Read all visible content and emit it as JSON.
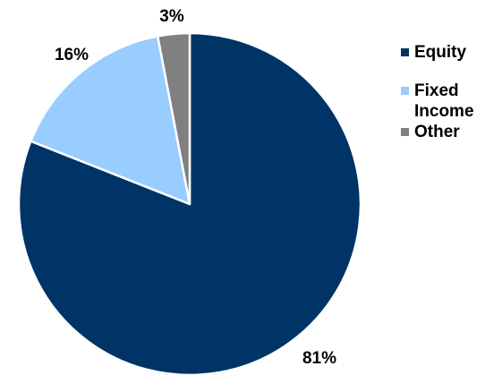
{
  "chart_data": {
    "type": "pie",
    "title": "",
    "slices": [
      {
        "label": "Equity",
        "value": 81,
        "display": "81%",
        "color": "#003366"
      },
      {
        "label": "Fixed Income",
        "value": 16,
        "display": "16%",
        "color": "#99CCFF"
      },
      {
        "label": "Other",
        "value": 3,
        "display": "3%",
        "color": "#808080"
      }
    ],
    "legend_position": "right",
    "start_angle": "top",
    "direction": "clockwise"
  },
  "legend": {
    "items": [
      {
        "label": "Equity",
        "color": "#003366"
      },
      {
        "label": "Fixed Income",
        "color": "#99CCFF"
      },
      {
        "label": "Other",
        "color": "#808080"
      }
    ]
  }
}
